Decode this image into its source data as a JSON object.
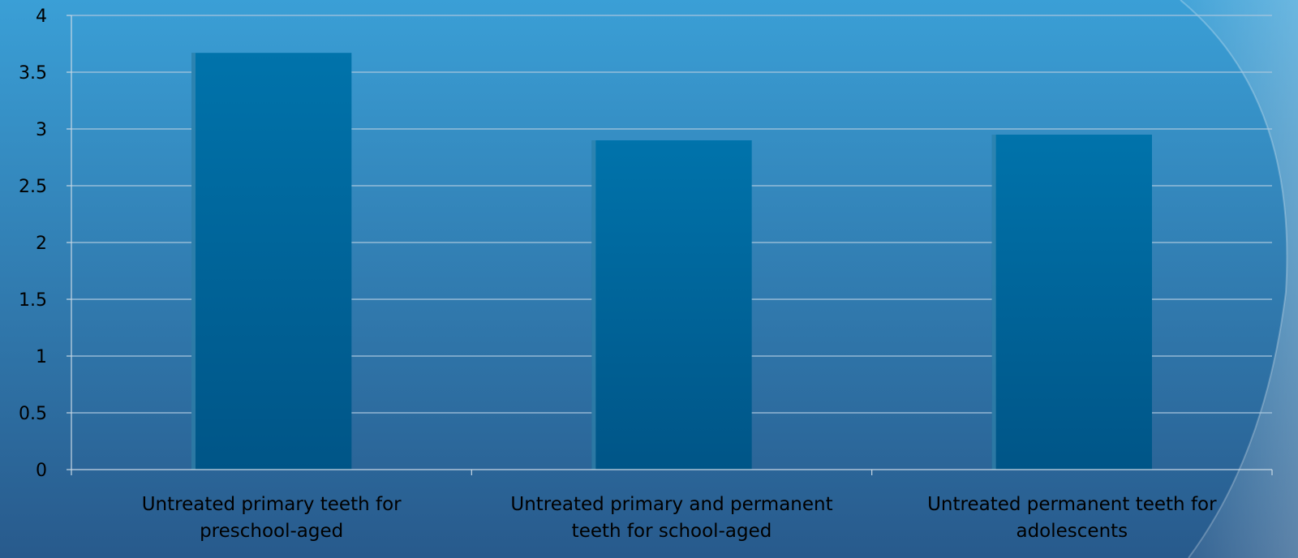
{
  "chart_data": {
    "type": "bar",
    "title": "",
    "xlabel": "",
    "ylabel": "",
    "ylim": [
      0,
      4
    ],
    "yticks": [
      0,
      0.5,
      1,
      1.5,
      2,
      2.5,
      3,
      3.5,
      4
    ],
    "ytick_labels": [
      "0",
      "0.5",
      "1",
      "1.5",
      "2",
      "2.5",
      "3",
      "3.5",
      "4"
    ],
    "grid": true,
    "legend": "none",
    "categories": [
      [
        "Untreated primary teeth for",
        "preschool-aged"
      ],
      [
        "Untreated primary and permanent",
        "teeth for school-aged"
      ],
      [
        "Untreated permanent teeth for",
        "adolescents"
      ]
    ],
    "values": [
      3.67,
      2.9,
      2.95
    ]
  },
  "colors": {
    "bg_top": "#3a9fd6",
    "bg_bottom": "#285a8c",
    "bar_top": "#0073ab",
    "bar_bottom": "#005587",
    "bar_edge": "#4a8fb5",
    "grid": "#a9c6dd",
    "axis": "#c8d8e4",
    "text": "#000000"
  }
}
